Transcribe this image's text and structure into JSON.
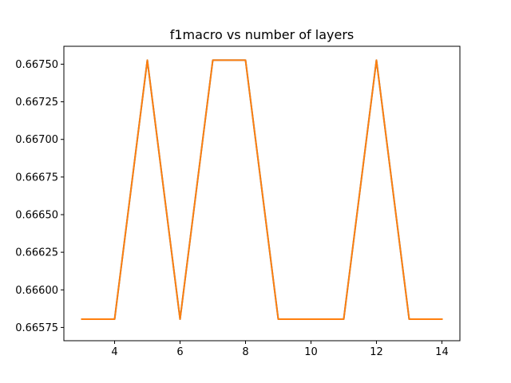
{
  "chart_data": {
    "type": "line",
    "title": "f1macro vs number of layers",
    "xlabel": "",
    "ylabel": "",
    "xlim": [
      2.45,
      14.55
    ],
    "ylim": [
      0.665662,
      0.667619
    ],
    "grid": false,
    "x_ticks": [
      4,
      6,
      8,
      10,
      12,
      14
    ],
    "x_tick_labels": [
      "4",
      "6",
      "8",
      "10",
      "12",
      "14"
    ],
    "y_ticks": [
      0.66575,
      0.666,
      0.66625,
      0.6665,
      0.66675,
      0.667,
      0.66725,
      0.6675
    ],
    "y_tick_labels": [
      "0.66575",
      "0.66600",
      "0.66625",
      "0.66650",
      "0.66675",
      "0.66700",
      "0.66725",
      "0.66750"
    ],
    "series": [
      {
        "color": "#1f77b4",
        "x": [
          3,
          4,
          5,
          6,
          7,
          8,
          9,
          10,
          11,
          12,
          13,
          14
        ],
        "y": [
          0.665805,
          0.665805,
          0.667527,
          0.665805,
          0.667527,
          0.667527,
          0.665805,
          0.665805,
          0.665805,
          0.667527,
          0.665805,
          0.665805
        ]
      },
      {
        "color": "#ff7f0e",
        "x": [
          3,
          4,
          5,
          6,
          7,
          8,
          9,
          10,
          11,
          12,
          13,
          14
        ],
        "y": [
          0.665805,
          0.665805,
          0.667527,
          0.665805,
          0.667527,
          0.667527,
          0.665805,
          0.665805,
          0.665805,
          0.667527,
          0.665805,
          0.665805
        ]
      }
    ]
  }
}
